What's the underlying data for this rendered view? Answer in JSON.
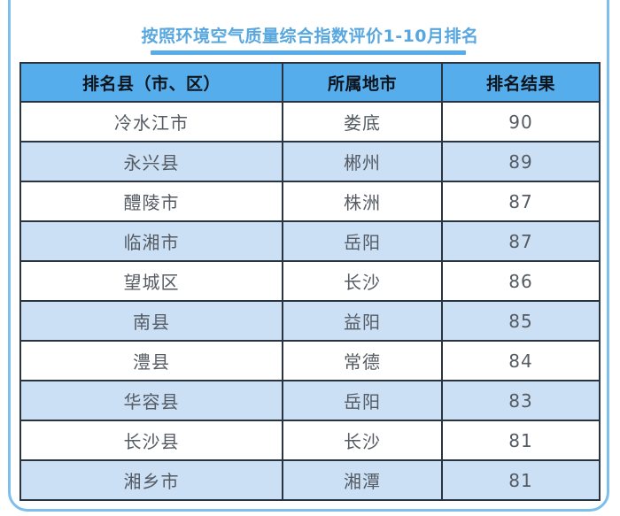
{
  "page": {
    "title": "按照环境空气质量综合指数评价1-10月排名"
  },
  "colors": {
    "card_border": "#7dbfec",
    "title_blue": "#58a7df",
    "accent_bar": "#57ace9",
    "header_bg": "#55adec",
    "header_text": "#0d141c",
    "row_alt_bg": "#cbdff5",
    "table_border": "#2a3440",
    "cell_text": "#555b63"
  },
  "chart_data": {
    "type": "table",
    "title": "按照环境空气质量综合指数评价1-10月排名",
    "columns": [
      "排名县（市、区）",
      "所属地市",
      "排名结果"
    ],
    "rows": [
      [
        "冷水江市",
        "娄底",
        90
      ],
      [
        "永兴县",
        "郴州",
        89
      ],
      [
        "醴陵市",
        "株洲",
        87
      ],
      [
        "临湘市",
        "岳阳",
        87
      ],
      [
        "望城区",
        "长沙",
        86
      ],
      [
        "南县",
        "益阳",
        85
      ],
      [
        "澧县",
        "常德",
        84
      ],
      [
        "华容县",
        "岳阳",
        83
      ],
      [
        "长沙县",
        "长沙",
        81
      ],
      [
        "湘乡市",
        "湘潭",
        81
      ]
    ],
    "layout_hints": {
      "header_background": "#55adec",
      "alternating_row_background": "#cbdff5",
      "grid": "on"
    }
  }
}
